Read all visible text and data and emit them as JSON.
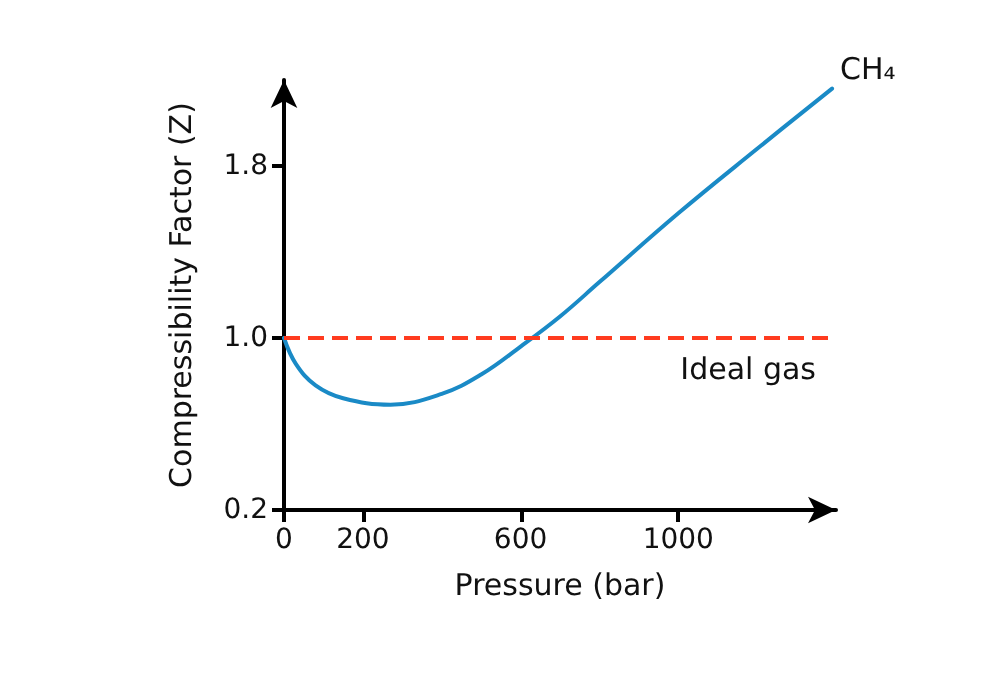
{
  "chart_data": {
    "type": "line",
    "xlabel": "Pressure (bar)",
    "ylabel": "Compressibility Factor (Z)",
    "xlim": [
      0,
      1400
    ],
    "xticks": [
      0,
      200,
      600,
      1000
    ],
    "ylim": [
      0.2,
      2.2
    ],
    "yticks": [
      0.2,
      {
        "value": 1,
        "label": "1.0"
      },
      1.8
    ],
    "grid": false,
    "legend": false,
    "marker": "none",
    "line_style": "solid",
    "series": [
      {
        "name": "CH₄",
        "color": "#1a8ac6",
        "x": [
          0,
          30,
          80,
          150,
          270,
          400,
          500,
          600,
          700,
          800,
          1000,
          1200,
          1390
        ],
        "values": [
          1.0,
          0.88,
          0.78,
          0.72,
          0.69,
          0.74,
          0.83,
          0.96,
          1.1,
          1.26,
          1.58,
          1.88,
          2.16
        ]
      }
    ],
    "ref_lines": [
      {
        "axis": "y",
        "value": 1.0,
        "label": "Ideal gas",
        "color": "#ff3b1f",
        "line_style": "dashed"
      }
    ]
  }
}
